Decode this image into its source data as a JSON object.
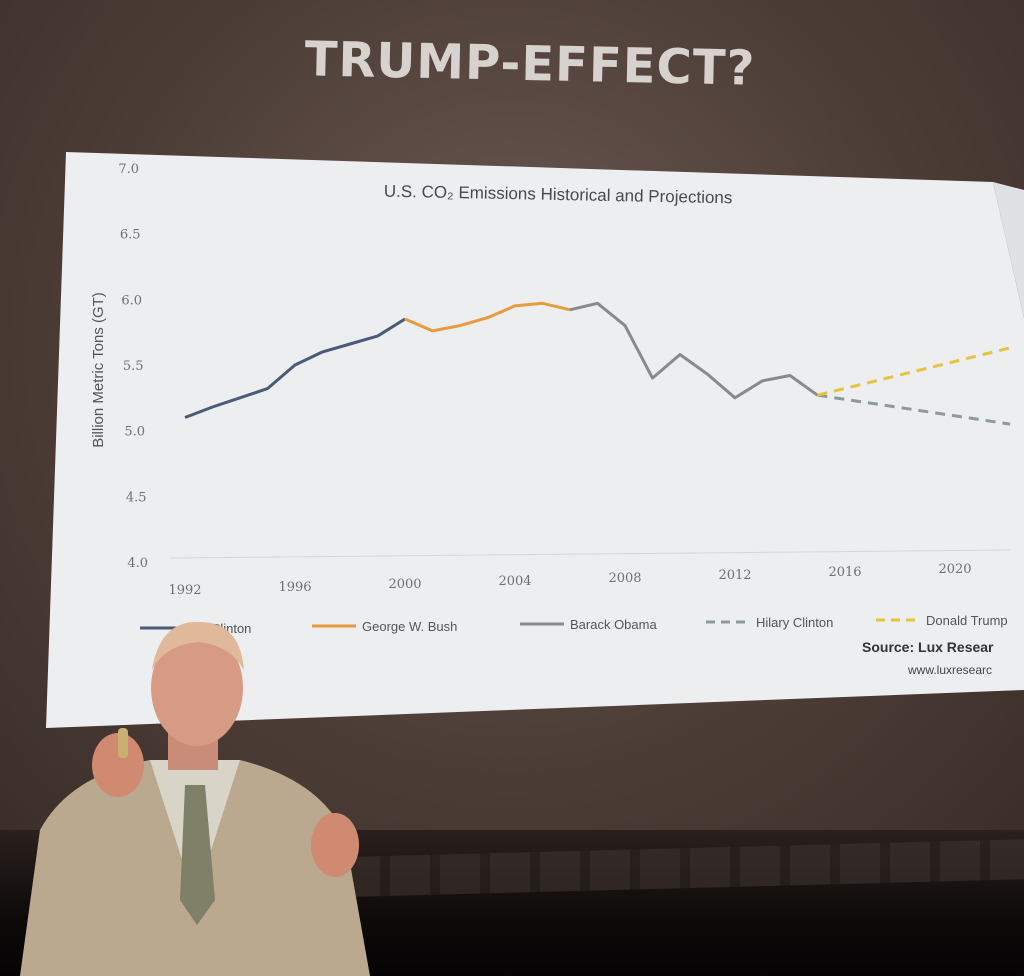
{
  "slide": {
    "title": "TRUMP-EFFECT?"
  },
  "chart_data": {
    "type": "line",
    "title": "U.S. CO₂ Emissions Historical and Projections",
    "xlabel": "",
    "ylabel": "Billion Metric Tons (GT)",
    "ylim": [
      4.0,
      7.0
    ],
    "xlim": [
      1992,
      2022
    ],
    "y_ticks": [
      "4.0",
      "4.5",
      "5.0",
      "5.5",
      "6.0",
      "6.5",
      "7.0"
    ],
    "x_ticks": [
      "1992",
      "1996",
      "2000",
      "2004",
      "2008",
      "2012",
      "2016",
      "2020"
    ],
    "grid": false,
    "legend_position": "bottom",
    "series": [
      {
        "name": "Bill Clinton",
        "color": "#4a5a78",
        "style": "solid",
        "x": [
          1992,
          1993,
          1994,
          1995,
          1996,
          1997,
          1998,
          1999,
          2000
        ],
        "y": [
          5.1,
          5.18,
          5.25,
          5.32,
          5.5,
          5.6,
          5.66,
          5.72,
          5.85
        ]
      },
      {
        "name": "George W. Bush",
        "color": "#e89a3c",
        "style": "solid",
        "x": [
          2000,
          2001,
          2002,
          2003,
          2004,
          2005,
          2006
        ],
        "y": [
          5.85,
          5.76,
          5.8,
          5.86,
          5.95,
          5.97,
          5.92
        ]
      },
      {
        "name": "Barack Obama",
        "color": "#8a8a8a",
        "style": "solid",
        "x": [
          2006,
          2007,
          2008,
          2009,
          2010,
          2011,
          2012,
          2013,
          2014,
          2015
        ],
        "y": [
          5.92,
          5.97,
          5.8,
          5.4,
          5.58,
          5.43,
          5.25,
          5.38,
          5.42,
          5.27
        ]
      },
      {
        "name": "Hilary Clinton",
        "color": "#8a9aa0",
        "style": "dashed",
        "x": [
          2015,
          2022
        ],
        "y": [
          5.27,
          5.05
        ]
      },
      {
        "name": "Donald Trump",
        "color": "#e8c23c",
        "style": "dashed",
        "x": [
          2015,
          2022
        ],
        "y": [
          5.27,
          5.63
        ]
      }
    ],
    "source_label": "Source: Lux Resear",
    "source_url": "www.luxresearc"
  }
}
